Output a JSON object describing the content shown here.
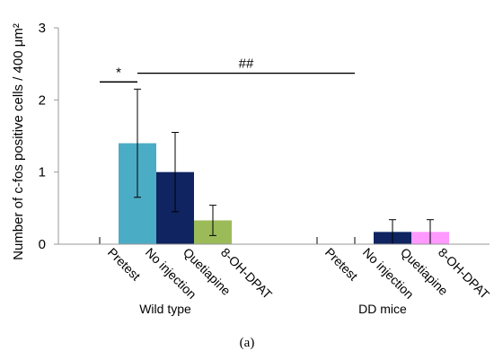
{
  "chart_data": {
    "type": "bar",
    "ylabel": "Number of c-fos positive cells / 400 μm²",
    "xlabel": "",
    "ylim": [
      0,
      3
    ],
    "yticks": [
      0,
      1,
      2,
      3
    ],
    "grid": false,
    "legend": "none",
    "caption": "(a)",
    "groups": [
      {
        "name": "Wild type",
        "bars": [
          {
            "label": "Pretest",
            "value": 0,
            "error": 0,
            "color": "#4472C4"
          },
          {
            "label": "No injection",
            "value": 1.4,
            "error": 0.75,
            "color": "#4BACC6"
          },
          {
            "label": "Quetiapine",
            "value": 1.0,
            "error": 0.55,
            "color": "#0F2461"
          },
          {
            "label": "8-OH-DPAT",
            "value": 0.33,
            "error": 0.21,
            "color": "#9BBB59"
          }
        ]
      },
      {
        "name": "DD mice",
        "bars": [
          {
            "label": "Pretest",
            "value": 0,
            "error": 0,
            "color": "#4472C4"
          },
          {
            "label": "No injection",
            "value": 0,
            "error": 0,
            "color": "#4BACC6"
          },
          {
            "label": "Quetiapine",
            "value": 0.17,
            "error": 0.17,
            "color": "#0F2461"
          },
          {
            "label": "8-OH-DPAT",
            "value": 0.17,
            "error": 0.17,
            "color": "#FF99FF"
          }
        ]
      }
    ],
    "annotations": [
      {
        "text": "*",
        "from": "Wild type/Pretest",
        "to": "Wild type/No injection",
        "y": 2.25
      },
      {
        "text": "##",
        "from": "Wild type/No injection",
        "to": "DD mice/No injection",
        "y": 2.37
      }
    ]
  }
}
